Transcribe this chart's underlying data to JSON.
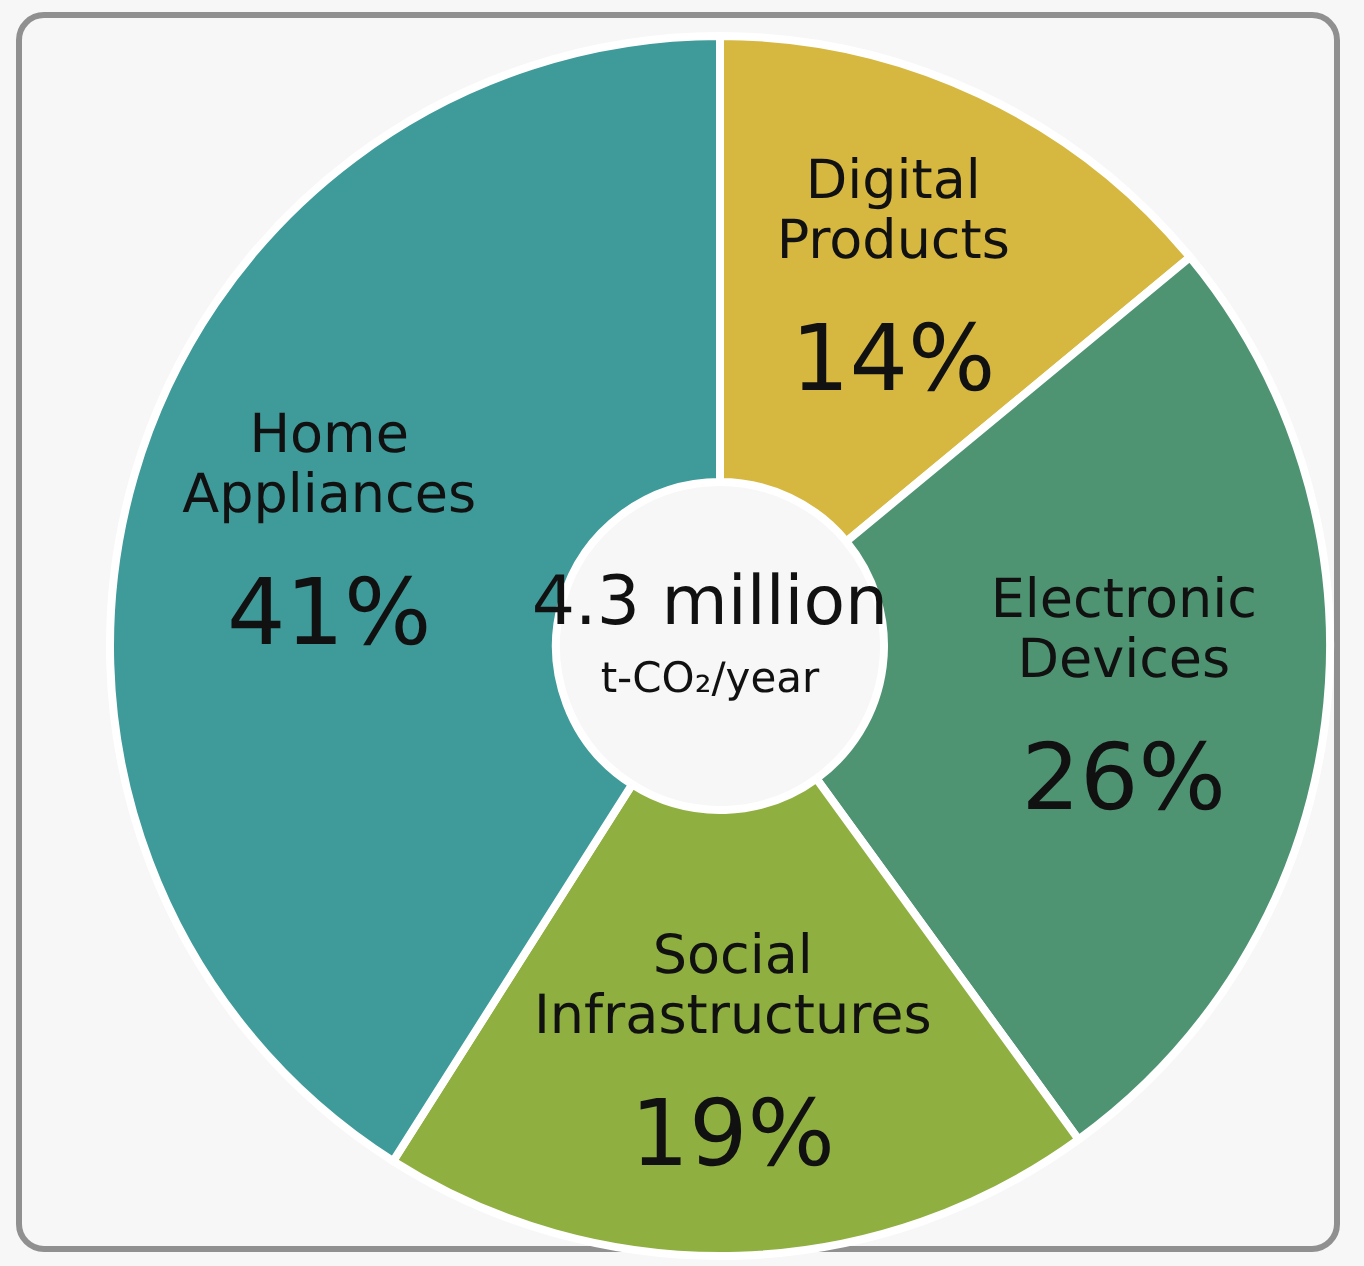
{
  "chart_data": {
    "type": "donut",
    "categories": [
      "Digital Products",
      "Electronic Devices",
      "Social Infrastructures",
      "Home Appliances"
    ],
    "values": [
      14,
      26,
      19,
      41
    ],
    "value_labels": [
      "14%",
      "26%",
      "19%",
      "41%"
    ],
    "colors": [
      "#d6b841",
      "#4f9472",
      "#8fb040",
      "#3f9a9a"
    ],
    "annotations": [
      "4.3 million",
      "t-CO₂/year"
    ],
    "legend": false
  }
}
